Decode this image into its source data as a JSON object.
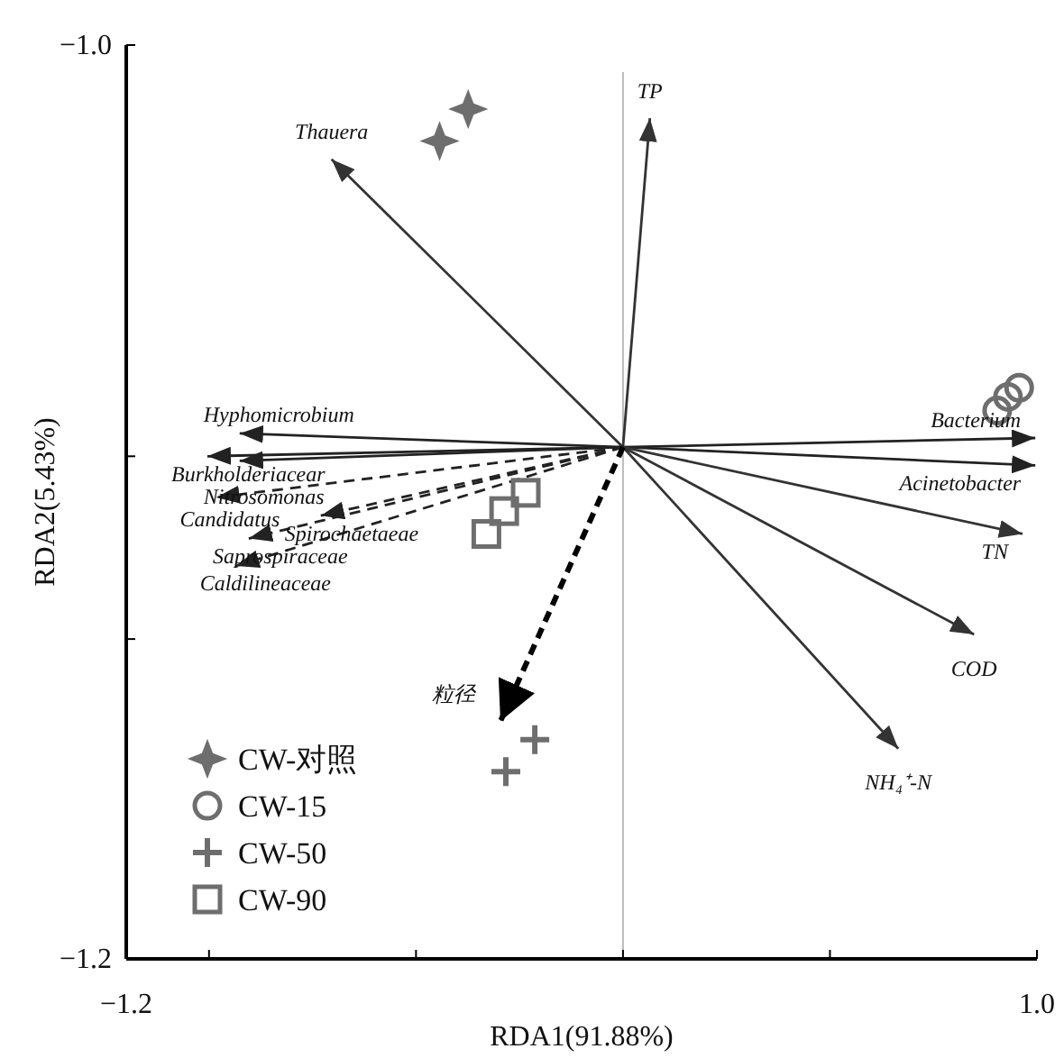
{
  "chart_data": {
    "type": "scatter",
    "xlabel": "RDA1(91.88%)",
    "ylabel": "RDA2(5.43%)",
    "xlim": [
      -1.2,
      1.0
    ],
    "ylim": [
      -1.2,
      -1.0
    ],
    "xticks": [
      {
        "value": -1.2,
        "label": "−1.2"
      },
      {
        "value": -1.0,
        "label": null
      },
      {
        "value": -0.5,
        "label": null
      },
      {
        "value": 0,
        "label": null
      },
      {
        "value": 0.5,
        "label": null
      },
      {
        "value": 1.0,
        "label": "1.0"
      }
    ],
    "yticks": [
      {
        "value": -1.2,
        "label": "−1.2"
      },
      {
        "value": -1.13,
        "label": null
      },
      {
        "value": -1.09,
        "label": null
      },
      {
        "value": -1.0,
        "label": "−1.0"
      }
    ],
    "ref_lines": [
      {
        "axis": "x",
        "value": 0,
        "color": "#bbbbbb"
      }
    ],
    "legend": "bottom left",
    "series": [
      {
        "type": "line",
        "color": "#333333",
        "line_style": "solid",
        "x": [
          0,
          0.065
        ],
        "values": [
          -1.088,
          -1.016
        ]
      },
      {
        "type": "line",
        "color": "#333333",
        "line_style": "solid",
        "x": [
          0,
          -0.704
        ],
        "values": [
          -1.088,
          -1.025
        ]
      },
      {
        "type": "line",
        "color": "#222222",
        "line_style": "solid",
        "x": [
          0,
          -0.926
        ],
        "values": [
          -1.088,
          -1.085
        ]
      },
      {
        "type": "line",
        "color": "#222222",
        "line_style": "solid",
        "x": [
          0,
          -1.004
        ],
        "values": [
          -1.088,
          -1.09
        ]
      },
      {
        "type": "line",
        "color": "#222222",
        "line_style": "solid",
        "x": [
          0,
          -0.926
        ],
        "values": [
          -1.088,
          -1.091
        ]
      },
      {
        "type": "line",
        "color": "#222222",
        "line_style": "dashed",
        "x": [
          0,
          -0.983
        ],
        "values": [
          -1.088,
          -1.099
        ]
      },
      {
        "type": "line",
        "color": "#222222",
        "line_style": "dashed",
        "x": [
          0,
          -0.73
        ],
        "values": [
          -1.088,
          -1.103
        ]
      },
      {
        "type": "line",
        "color": "#222222",
        "line_style": "dashed",
        "x": [
          0,
          -0.904
        ],
        "values": [
          -1.088,
          -1.108
        ]
      },
      {
        "type": "line",
        "color": "#222222",
        "line_style": "dashed",
        "x": [
          0,
          -0.935
        ],
        "values": [
          -1.088,
          -1.114
        ]
      },
      {
        "type": "line",
        "color": "#222222",
        "line_style": "solid",
        "x": [
          0,
          0.996
        ],
        "values": [
          -1.088,
          -1.086
        ]
      },
      {
        "type": "line",
        "color": "#222222",
        "line_style": "solid",
        "x": [
          0,
          0.996
        ],
        "values": [
          -1.088,
          -1.092
        ]
      },
      {
        "type": "line",
        "color": "#333333",
        "line_style": "solid",
        "x": [
          0,
          0.965
        ],
        "values": [
          -1.088,
          -1.107
        ]
      },
      {
        "type": "line",
        "color": "#333333",
        "line_style": "solid",
        "x": [
          0,
          0.848
        ],
        "values": [
          -1.088,
          -1.129
        ]
      },
      {
        "type": "line",
        "color": "#333333",
        "line_style": "solid",
        "x": [
          0,
          0.665
        ],
        "values": [
          -1.088,
          -1.154
        ]
      },
      {
        "type": "line",
        "color": "#000000",
        "line_style": "dashed",
        "x": [
          0,
          -0.296
        ],
        "values": [
          -1.088,
          -1.148
        ]
      },
      {
        "name": "CW-对照",
        "color": "#6e6e6e",
        "marker": "star",
        "x": [
          -0.443,
          -0.374
        ],
        "values": [
          -1.021,
          -1.014
        ]
      },
      {
        "name": "CW-15",
        "color": "#6e6e6e",
        "marker": "circle",
        "x": [
          0.904,
          0.93,
          0.957
        ],
        "values": [
          -1.08,
          -1.077,
          -1.075
        ]
      },
      {
        "name": "CW-50",
        "color": "#6e6e6e",
        "marker": "cross",
        "x": [
          -0.283,
          -0.213
        ],
        "values": [
          -1.159,
          -1.152
        ]
      },
      {
        "name": "CW-90",
        "color": "#6e6e6e",
        "marker": "square",
        "x": [
          -0.33,
          -0.287,
          -0.235
        ],
        "values": [
          -1.107,
          -1.102,
          -1.098
        ]
      }
    ],
    "annotations": [
      {
        "text": "TP",
        "x": 0.065,
        "y": -1.016
      },
      {
        "text": "Thauera",
        "x": -0.704,
        "y": -1.025
      },
      {
        "text": "Hyphomicrobium",
        "x": -0.926,
        "y": -1.085
      },
      {
        "text": "Burkholderiacear",
        "x": -1.004,
        "y": -1.09
      },
      {
        "text": "Nitrosomonas",
        "x": -0.926,
        "y": -1.091
      },
      {
        "text": "Candidatus",
        "x": -0.983,
        "y": -1.099
      },
      {
        "text": "Spirochaetaeae",
        "x": -0.73,
        "y": -1.103
      },
      {
        "text": "Saprospiraceae",
        "x": -0.904,
        "y": -1.108
      },
      {
        "text": "Caldilineaceae",
        "x": -0.935,
        "y": -1.114
      },
      {
        "text": "Bacterium",
        "x": 0.996,
        "y": -1.086
      },
      {
        "text": "Acinetobacter",
        "x": 0.996,
        "y": -1.092
      },
      {
        "text": "TN",
        "x": 0.965,
        "y": -1.107
      },
      {
        "text": "COD",
        "x": 0.848,
        "y": -1.129
      },
      {
        "text": "NH₄⁺-N",
        "x": 0.665,
        "y": -1.154
      },
      {
        "text": "粒径",
        "x": -0.296,
        "y": -1.148
      }
    ]
  }
}
